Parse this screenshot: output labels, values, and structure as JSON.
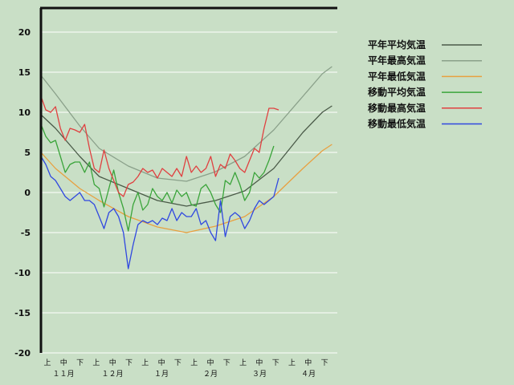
{
  "chart_data": {
    "type": "line",
    "title": "",
    "xlabel": "",
    "ylabel": "",
    "ylim": [
      -20,
      23
    ],
    "yticks": [
      20,
      15,
      10,
      5,
      0,
      -5,
      -10,
      -15,
      -20
    ],
    "xtick_labels": [
      "上",
      "中",
      "下",
      "上",
      "中",
      "下",
      "上",
      "中",
      "下",
      "上",
      "中",
      "下",
      "上",
      "中",
      "下",
      "上",
      "中",
      "下"
    ],
    "month_labels": [
      "１１月",
      "１２月",
      "１月",
      "２月",
      "３月",
      "４月"
    ],
    "grid": true,
    "legend_position": "right",
    "series": [
      {
        "name": "平年平均気温",
        "color": "#4a5a48",
        "x": [
          0,
          3,
          8,
          12,
          18,
          24,
          30,
          36,
          42,
          48,
          54,
          58,
          60
        ],
        "y": [
          9.7,
          8,
          4.5,
          2,
          0.5,
          -1,
          -1.7,
          -1,
          0.2,
          3,
          7.5,
          10,
          10.8
        ]
      },
      {
        "name": "平年最高気温",
        "color": "#8aa08a",
        "x": [
          0,
          3,
          8,
          12,
          18,
          24,
          30,
          36,
          42,
          48,
          54,
          58,
          60
        ],
        "y": [
          14.6,
          12.3,
          8.3,
          5.5,
          3.3,
          1.8,
          1.4,
          2.6,
          4.5,
          7.8,
          12,
          14.8,
          15.7
        ]
      },
      {
        "name": "平年最低気温",
        "color": "#e8a040",
        "x": [
          0,
          3,
          8,
          12,
          18,
          24,
          30,
          36,
          42,
          48,
          54,
          58,
          60
        ],
        "y": [
          5,
          3,
          0.5,
          -1,
          -3,
          -4.3,
          -5,
          -4.2,
          -3,
          -0.5,
          3,
          5.2,
          6
        ]
      },
      {
        "name": "移動平均気温",
        "color": "#3aa43a",
        "x": [
          0,
          1,
          2,
          3,
          4,
          5,
          6,
          7,
          8,
          9,
          10,
          11,
          12,
          13,
          14,
          15,
          16,
          17,
          18,
          19,
          20,
          21,
          22,
          23,
          24,
          25,
          26,
          27,
          28,
          29,
          30,
          31,
          32,
          33,
          34,
          35,
          36,
          37,
          38,
          39,
          40,
          41,
          42,
          43,
          44,
          45,
          46,
          47,
          48
        ],
        "y": [
          8.5,
          7,
          6.2,
          6.5,
          4.5,
          2.5,
          3.5,
          3.8,
          3.8,
          2.5,
          3.8,
          1,
          0.5,
          -1.8,
          0.5,
          2.8,
          0,
          -2,
          -4.8,
          -1.5,
          0,
          -2.2,
          -1.5,
          0.5,
          -0.5,
          -1,
          0,
          -1.3,
          0.3,
          -0.5,
          0,
          -1.5,
          -1.7,
          0.5,
          1,
          0,
          -1.5,
          -2.5,
          1.5,
          1,
          2.5,
          1,
          -1,
          0,
          2.5,
          1.8,
          2.5,
          4,
          5.8
        ]
      },
      {
        "name": "移動最高気温",
        "color": "#e04040",
        "x": [
          0,
          1,
          2,
          3,
          4,
          5,
          6,
          7,
          8,
          9,
          10,
          11,
          12,
          13,
          14,
          15,
          16,
          17,
          18,
          19,
          20,
          21,
          22,
          23,
          24,
          25,
          26,
          27,
          28,
          29,
          30,
          31,
          32,
          33,
          34,
          35,
          36,
          37,
          38,
          39,
          40,
          41,
          42,
          43,
          44,
          45,
          46,
          47,
          48,
          49
        ],
        "y": [
          12,
          10.3,
          10,
          10.7,
          8,
          6.5,
          8,
          7.8,
          7.5,
          8.5,
          5.5,
          3,
          2.5,
          5.3,
          3,
          1.5,
          0,
          -0.5,
          1,
          1.3,
          2,
          3,
          2.5,
          2.8,
          1.8,
          3,
          2.5,
          2,
          3,
          2,
          4.5,
          2.5,
          3.3,
          2.5,
          3,
          4.5,
          2,
          3.5,
          3,
          4.8,
          4,
          3,
          2.5,
          4,
          5.5,
          5,
          8,
          10.5,
          10.5,
          10.3
        ]
      },
      {
        "name": "移動最低気温",
        "color": "#3048e0",
        "x": [
          0,
          1,
          2,
          3,
          4,
          5,
          6,
          7,
          8,
          9,
          10,
          11,
          12,
          13,
          14,
          15,
          16,
          17,
          18,
          19,
          20,
          21,
          22,
          23,
          24,
          25,
          26,
          27,
          28,
          29,
          30,
          31,
          32,
          33,
          34,
          35,
          36,
          37,
          38,
          39,
          40,
          41,
          42,
          43,
          44,
          45,
          46,
          47,
          48,
          49
        ],
        "y": [
          4.5,
          3.5,
          2,
          1.5,
          0.5,
          -0.5,
          -1,
          -0.5,
          0,
          -1,
          -1,
          -1.5,
          -3,
          -4.5,
          -2.5,
          -2,
          -3,
          -5,
          -9.5,
          -6.5,
          -4,
          -3.5,
          -3.8,
          -3.5,
          -4,
          -3.2,
          -3.5,
          -2,
          -3.5,
          -2.5,
          -3,
          -3,
          -2,
          -4,
          -3.5,
          -5,
          -6,
          -1,
          -5.5,
          -3,
          -2.5,
          -3,
          -4.5,
          -3.5,
          -2,
          -1,
          -1.5,
          -1,
          -0.5,
          1.8
        ]
      }
    ]
  }
}
